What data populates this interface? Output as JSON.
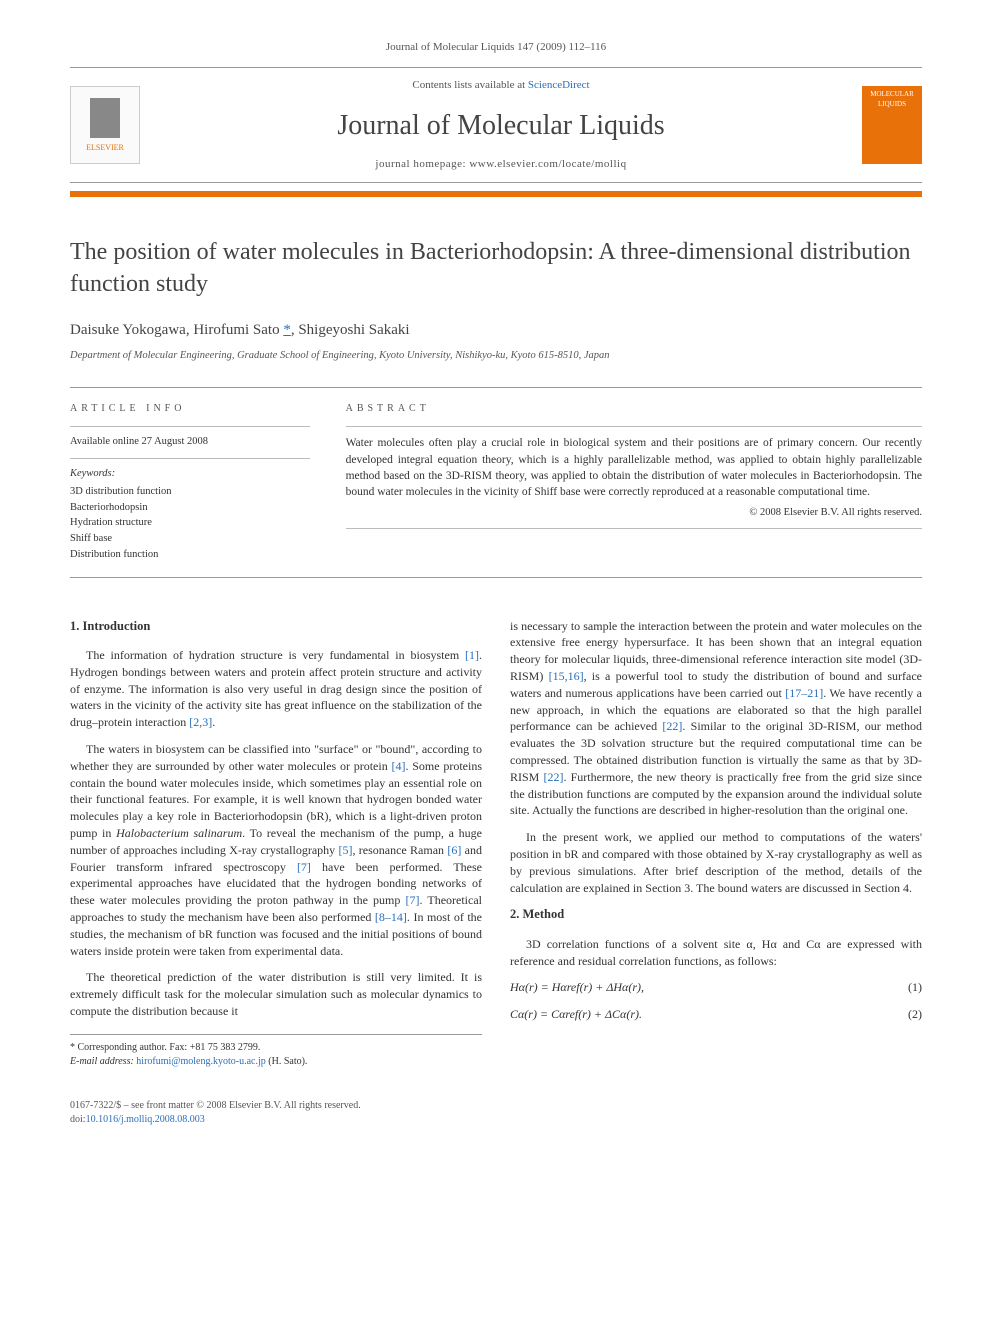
{
  "header": {
    "citation": "Journal of Molecular Liquids 147 (2009) 112–116",
    "contents_text": "Contents lists available at ",
    "contents_link": "ScienceDirect",
    "journal_name": "Journal of Molecular Liquids",
    "homepage_label": "journal homepage: ",
    "homepage_url": "www.elsevier.com/locate/molliq",
    "publisher_logo_text": "ELSEVIER",
    "cover_text_top": "MOLECULAR",
    "cover_text_bottom": "LIQUIDS"
  },
  "article": {
    "title": "The position of water molecules in Bacteriorhodopsin: A three-dimensional distribution function study",
    "authors_html": "Daisuke Yokogawa, Hirofumi Sato ",
    "author_corr_marker": "*",
    "authors_tail": ", Shigeyoshi Sakaki",
    "affiliation": "Department of Molecular Engineering, Graduate School of Engineering, Kyoto University, Nishikyo-ku, Kyoto 615-8510, Japan"
  },
  "info": {
    "label": "article info",
    "available": "Available online 27 August 2008",
    "keywords_label": "Keywords:",
    "keywords": [
      "3D distribution function",
      "Bacteriorhodopsin",
      "Hydration structure",
      "Shiff base",
      "Distribution function"
    ]
  },
  "abstract": {
    "label": "abstract",
    "text": "Water molecules often play a crucial role in biological system and their positions are of primary concern. Our recently developed integral equation theory, which is a highly parallelizable method, was applied to obtain highly parallelizable method based on the 3D-RISM theory, was applied to obtain the distribution of water molecules in Bacteriorhodopsin. The bound water molecules in the vicinity of Shiff base were correctly reproduced at a reasonable computational time.",
    "copyright": "© 2008 Elsevier B.V. All rights reserved."
  },
  "body": {
    "intro_heading": "1. Introduction",
    "method_heading": "2. Method",
    "p1a": "The information of hydration structure is very fundamental in biosystem ",
    "ref1": "[1]",
    "p1b": ". Hydrogen bondings between waters and protein affect protein structure and activity of enzyme. The information is also very useful in drag design since the position of waters in the vicinity of the activity site has great influence on the stabilization of the drug–protein interaction ",
    "ref23": "[2,3]",
    "p1c": ".",
    "p2a": "The waters in biosystem can be classified into \"surface\" or \"bound\", according to whether they are surrounded by other water molecules or protein ",
    "ref4": "[4]",
    "p2b": ". Some proteins contain the bound water molecules inside, which sometimes play an essential role on their functional features. For example, it is well known that hydrogen bonded water molecules play a key role in Bacteriorhodopsin (bR), which is a light-driven proton pump in ",
    "italictext": "Halobacterium salinarum",
    "p2c": ". To reveal the mechanism of the pump, a huge number of approaches including X-ray crystallography ",
    "ref5": "[5]",
    "p2d": ", resonance Raman ",
    "ref6": "[6]",
    "p2e": " and Fourier transform infrared spectroscopy ",
    "ref7": "[7]",
    "p2f": " have been performed. These experimental approaches have elucidated that the hydrogen bonding networks of these water molecules providing the proton pathway in the pump ",
    "ref7b": "[7]",
    "p2g": ". Theoretical approaches to study the mechanism have been also performed ",
    "ref814": "[8–14]",
    "p2h": ". In most of the studies, the mechanism of bR function was focused and the initial positions of bound waters inside protein were taken from experimental data.",
    "p3": "The theoretical prediction of the water distribution is still very limited. It is extremely difficult task for the molecular simulation such as molecular dynamics to compute the distribution because it",
    "p4a": "is necessary to sample the interaction between the protein and water molecules on the extensive free energy hypersurface. It has been shown that an integral equation theory for molecular liquids, three-dimensional reference interaction site model (3D-RISM) ",
    "ref1516": "[15,16]",
    "p4b": ", is a powerful tool to study the distribution of bound and surface waters and numerous applications have been carried out ",
    "ref1721": "[17–21]",
    "p4c": ". We have recently a new approach, in which the equations are elaborated so that the high parallel performance can be achieved ",
    "ref22": "[22]",
    "p4d": ". Similar to the original 3D-RISM, our method evaluates the 3D solvation structure but the required computational time can be compressed. The obtained distribution function is virtually the same as that by 3D-RISM ",
    "ref22b": "[22]",
    "p4e": ". Furthermore, the new theory is practically free from the grid size since the distribution functions are computed by the expansion around the individual solute site. Actually the functions are described in higher-resolution than the original one.",
    "p5": "In the present work, we applied our method to computations of the waters' position in bR and compared with those obtained by X-ray crystallography as well as by previous simulations. After brief description of the method, details of the calculation are explained in Section 3. The bound waters are discussed in Section 4.",
    "p6": "3D correlation functions of a solvent site α, Hα and Cα are expressed with reference and residual correlation functions, as follows:",
    "eq1": "Hα(r) = Hαref(r) + ΔHα(r),",
    "eq1num": "(1)",
    "eq2": "Cα(r) = Cαref(r) + ΔCα(r).",
    "eq2num": "(2)"
  },
  "footnotes": {
    "corr": "* Corresponding author. Fax: +81 75 383 2799.",
    "email_label": "E-mail address: ",
    "email": "hirofumi@moleng.kyoto-u.ac.jp",
    "email_tail": " (H. Sato)."
  },
  "bottom": {
    "issn": "0167-7322/$ – see front matter © 2008 Elsevier B.V. All rights reserved.",
    "doi_label": "doi:",
    "doi": "10.1016/j.molliq.2008.08.003"
  },
  "colors": {
    "accent": "#e8710a",
    "link": "#2a6ebb",
    "text": "#333333",
    "rule": "#999999"
  }
}
